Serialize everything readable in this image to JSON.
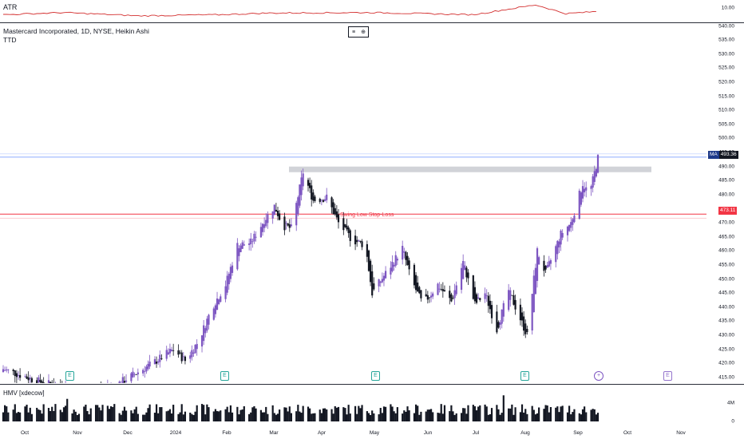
{
  "atr": {
    "label": "ATR",
    "tick": "10.00"
  },
  "main": {
    "title": "Mastercard Incorporated, 1D, NYSE, Heikin Ashi",
    "subtitle": "TTD",
    "y_ticks": [
      "540.00",
      "535.00",
      "530.00",
      "525.00",
      "520.00",
      "515.00",
      "510.00",
      "505.00",
      "500.00",
      "495.00",
      "490.00",
      "485.00",
      "480.00",
      "475.00",
      "470.00",
      "465.00",
      "460.00",
      "455.00",
      "450.00",
      "445.00",
      "440.00",
      "435.00",
      "430.00",
      "425.00",
      "420.00",
      "415.00"
    ],
    "stop_loss_label": "Swing Low Stop-Loss",
    "ma_tag": {
      "key": "MA",
      "value": "493.36"
    },
    "stop_tag": {
      "value": "473.11"
    },
    "controls": [
      "≡",
      "⊕"
    ]
  },
  "volume": {
    "label": "HMV [xdecow]",
    "ticks": [
      "4M",
      "0"
    ]
  },
  "x_ticks": [
    "Oct",
    "Nov",
    "Dec",
    "2024",
    "Feb",
    "Mar",
    "Apr",
    "May",
    "Jun",
    "Jul",
    "Aug",
    "Sep",
    "Oct",
    "Nov"
  ],
  "events": {
    "earnings_glyph": "E",
    "dividend_glyph": "+"
  },
  "colors": {
    "bull": "#7e57c2",
    "bear": "#131722",
    "atr_line": "#d32f2f",
    "stop_line": "#f23645",
    "ma_line": "#2962ff",
    "zone": "#b2b5be"
  },
  "chart_data": {
    "type": "candlestick",
    "title": "Mastercard Incorporated, 1D, NYSE, Heikin Ashi",
    "ylim": [
      413,
      541
    ],
    "stop_loss": 473.11,
    "ma": 493.36,
    "resistance_zone": [
      488,
      490
    ],
    "close_path": [
      [
        "2023-09-26",
        418
      ],
      [
        "2023-10-15",
        414
      ],
      [
        "2023-11-10",
        410
      ],
      [
        "2023-12-01",
        412
      ],
      [
        "2023-12-18",
        418
      ],
      [
        "2023-12-26",
        421
      ],
      [
        "2024-01-05",
        425
      ],
      [
        "2024-01-12",
        421
      ],
      [
        "2024-01-20",
        428
      ],
      [
        "2024-01-28",
        440
      ],
      [
        "2024-02-05",
        448
      ],
      [
        "2024-02-12",
        462
      ],
      [
        "2024-02-20",
        463
      ],
      [
        "2024-02-28",
        471
      ],
      [
        "2024-03-05",
        476
      ],
      [
        "2024-03-10",
        469
      ],
      [
        "2024-03-15",
        468
      ],
      [
        "2024-03-22",
        488
      ],
      [
        "2024-03-28",
        478
      ],
      [
        "2024-04-05",
        479
      ],
      [
        "2024-04-12",
        470
      ],
      [
        "2024-04-20",
        464
      ],
      [
        "2024-04-28",
        462
      ],
      [
        "2024-05-02",
        445
      ],
      [
        "2024-05-10",
        452
      ],
      [
        "2024-05-20",
        461
      ],
      [
        "2024-05-25",
        450
      ],
      [
        "2024-06-01",
        441
      ],
      [
        "2024-06-10",
        448
      ],
      [
        "2024-06-18",
        442
      ],
      [
        "2024-06-25",
        456
      ],
      [
        "2024-07-02",
        441
      ],
      [
        "2024-07-08",
        445
      ],
      [
        "2024-07-15",
        432
      ],
      [
        "2024-07-22",
        446
      ],
      [
        "2024-08-02",
        430
      ],
      [
        "2024-08-08",
        460
      ],
      [
        "2024-08-13",
        452
      ],
      [
        "2024-08-22",
        466
      ],
      [
        "2024-08-28",
        470
      ],
      [
        "2024-09-04",
        484
      ],
      [
        "2024-09-08",
        480
      ],
      [
        "2024-09-13",
        493
      ]
    ],
    "atr_path": [
      [
        "2023-09-26",
        8.6
      ],
      [
        "2023-11-01",
        9.0
      ],
      [
        "2023-12-15",
        8.4
      ],
      [
        "2024-02-01",
        8.6
      ],
      [
        "2024-03-01",
        8.9
      ],
      [
        "2024-05-01",
        9.0
      ],
      [
        "2024-07-01",
        8.6
      ],
      [
        "2024-08-07",
        10.4
      ],
      [
        "2024-08-25",
        8.8
      ],
      [
        "2024-09-13",
        9.2
      ]
    ]
  }
}
